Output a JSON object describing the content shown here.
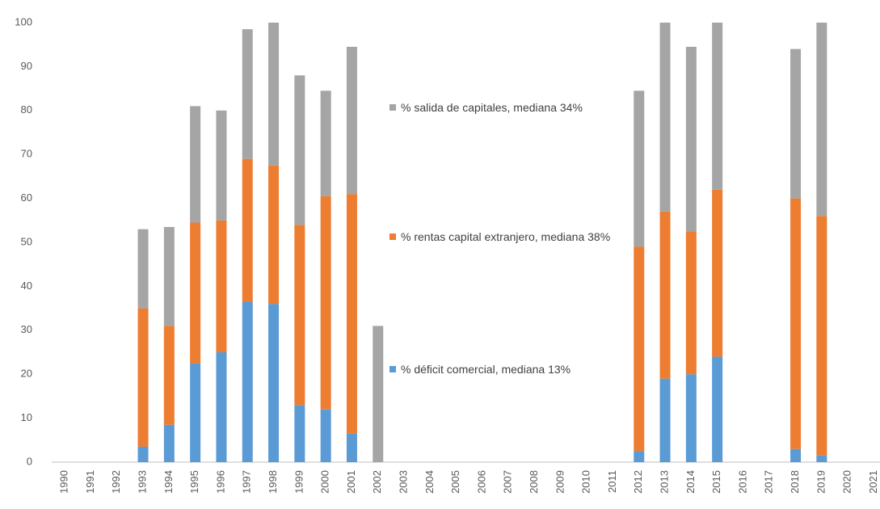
{
  "chart_data": {
    "type": "stacked_bar",
    "categories": [
      "1990",
      "1991",
      "1992",
      "1993",
      "1994",
      "1995",
      "1996",
      "1997",
      "1998",
      "1999",
      "2000",
      "2001",
      "2002",
      "2003",
      "2004",
      "2005",
      "2006",
      "2007",
      "2008",
      "2009",
      "2010",
      "2011",
      "2012",
      "2013",
      "2014",
      "2015",
      "2016",
      "2017",
      "2018",
      "2019",
      "2020",
      "2021"
    ],
    "series": [
      {
        "name": "% déficit comercial, mediana 13%",
        "color": "#5b9bd5",
        "values": [
          null,
          null,
          null,
          3.5,
          8.5,
          22.5,
          25,
          36.5,
          36,
          13,
          12,
          6.5,
          0,
          null,
          null,
          null,
          null,
          null,
          null,
          null,
          null,
          null,
          2.5,
          19,
          20,
          24,
          null,
          null,
          3,
          1.5,
          null,
          null
        ]
      },
      {
        "name": "% rentas capital extranjero, mediana 38%",
        "color": "#ed7d31",
        "values": [
          null,
          null,
          null,
          31.5,
          22.5,
          32,
          30,
          32.5,
          31.5,
          41,
          48.5,
          54.5,
          0,
          null,
          null,
          null,
          null,
          null,
          null,
          null,
          null,
          null,
          46.5,
          38,
          32.5,
          38,
          null,
          null,
          57,
          54.5,
          null,
          null
        ]
      },
      {
        "name": "% salida de capitales, mediana 34%",
        "color": "#a5a5a5",
        "values": [
          null,
          null,
          null,
          18,
          22.5,
          26.5,
          25,
          29.5,
          32.5,
          34,
          24,
          33.5,
          31,
          null,
          null,
          null,
          null,
          null,
          null,
          null,
          null,
          null,
          35.5,
          43,
          42,
          38,
          null,
          null,
          34,
          44,
          null,
          null
        ]
      }
    ],
    "ylim": [
      0,
      100
    ],
    "yticks": [
      0,
      10,
      20,
      30,
      40,
      50,
      60,
      70,
      80,
      90,
      100
    ],
    "grid": false
  }
}
